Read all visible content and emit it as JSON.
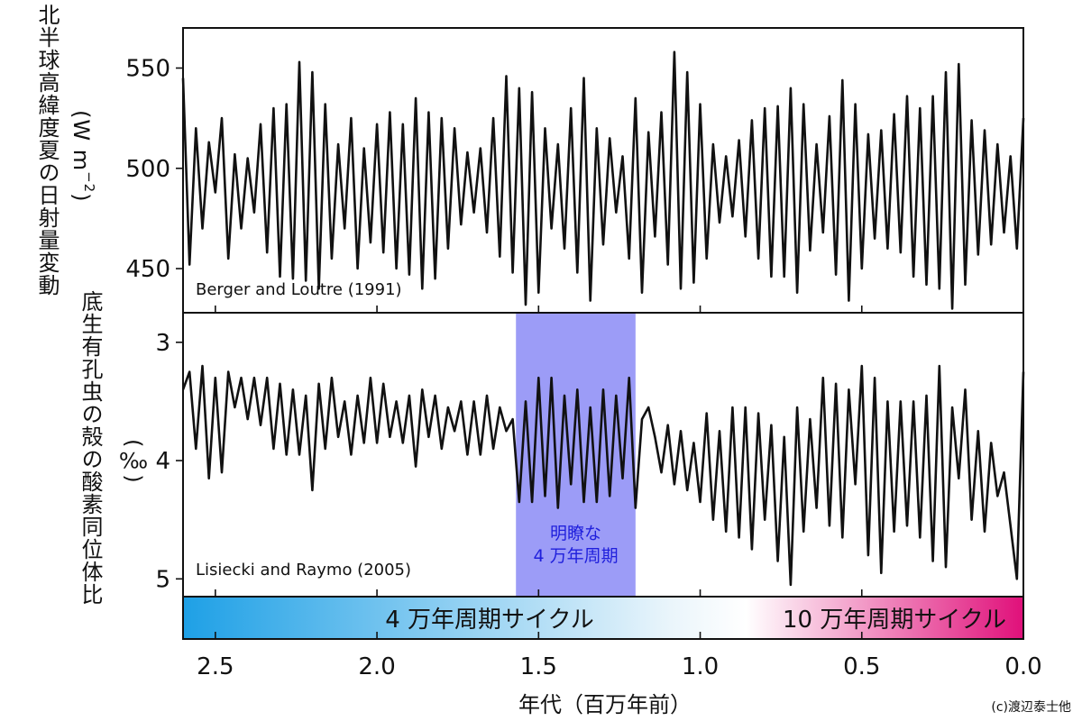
{
  "chart_data": [
    {
      "type": "line",
      "title": "",
      "ylabel": "北半球高緯度夏の日射量変動",
      "yunit": "(W m⁻²)",
      "annotation": "Berger and Loutre (1991)",
      "xlim": [
        2.6,
        0.0
      ],
      "ylim": [
        428,
        570
      ],
      "yticks": [
        450,
        500,
        550
      ],
      "series": [
        {
          "x": [
            2.6,
            2.58,
            2.56,
            2.54,
            2.52,
            2.5,
            2.48,
            2.46,
            2.44,
            2.42,
            2.4,
            2.38,
            2.36,
            2.34,
            2.32,
            2.3,
            2.28,
            2.26,
            2.24,
            2.22,
            2.2,
            2.18,
            2.16,
            2.14,
            2.12,
            2.1,
            2.08,
            2.06,
            2.04,
            2.02,
            2.0,
            1.98,
            1.96,
            1.94,
            1.92,
            1.9,
            1.88,
            1.86,
            1.84,
            1.82,
            1.8,
            1.78,
            1.76,
            1.74,
            1.72,
            1.7,
            1.68,
            1.66,
            1.64,
            1.62,
            1.6,
            1.58,
            1.56,
            1.54,
            1.52,
            1.5,
            1.48,
            1.46,
            1.44,
            1.42,
            1.4,
            1.38,
            1.36,
            1.34,
            1.32,
            1.3,
            1.28,
            1.26,
            1.24,
            1.22,
            1.2,
            1.18,
            1.16,
            1.14,
            1.12,
            1.1,
            1.08,
            1.06,
            1.04,
            1.02,
            1.0,
            0.98,
            0.96,
            0.94,
            0.92,
            0.9,
            0.88,
            0.86,
            0.84,
            0.82,
            0.8,
            0.78,
            0.76,
            0.74,
            0.72,
            0.7,
            0.68,
            0.66,
            0.64,
            0.62,
            0.6,
            0.58,
            0.56,
            0.54,
            0.52,
            0.5,
            0.48,
            0.46,
            0.44,
            0.42,
            0.4,
            0.38,
            0.36,
            0.34,
            0.32,
            0.3,
            0.28,
            0.26,
            0.24,
            0.22,
            0.2,
            0.18,
            0.16,
            0.14,
            0.12,
            0.1,
            0.08,
            0.06,
            0.04,
            0.02,
            0.0
          ],
          "y": [
            545,
            452,
            520,
            470,
            513,
            488,
            525,
            455,
            507,
            470,
            505,
            478,
            522,
            458,
            530,
            446,
            532,
            445,
            553,
            444,
            548,
            440,
            532,
            455,
            512,
            470,
            525,
            450,
            510,
            463,
            522,
            458,
            528,
            450,
            522,
            447,
            535,
            440,
            528,
            445,
            525,
            460,
            520,
            472,
            508,
            478,
            510,
            468,
            525,
            456,
            546,
            448,
            540,
            432,
            538,
            438,
            520,
            470,
            512,
            460,
            530,
            448,
            545,
            434,
            520,
            462,
            515,
            478,
            506,
            455,
            535,
            438,
            518,
            466,
            528,
            452,
            558,
            440,
            548,
            443,
            532,
            455,
            512,
            473,
            506,
            476,
            514,
            466,
            524,
            455,
            530,
            446,
            531,
            446,
            540,
            438,
            532,
            459,
            512,
            468,
            526,
            447,
            544,
            434,
            532,
            450,
            517,
            465,
            519,
            460,
            527,
            458,
            536,
            446,
            530,
            442,
            536,
            440,
            548,
            430,
            552,
            442,
            524,
            457,
            519,
            462,
            512,
            468,
            506,
            460,
            525
          ]
        }
      ]
    },
    {
      "type": "line",
      "title": "",
      "ylabel": "底生有孔虫の殻の酸素同位体比",
      "yunit": "(‰)",
      "annotation": "Lisiecki and Raymo (2005)",
      "y_inverted": true,
      "xlim": [
        2.6,
        0.0
      ],
      "ylim": [
        2.75,
        5.15
      ],
      "yticks": [
        3,
        4,
        5
      ],
      "highlight": {
        "x_from": 1.57,
        "x_to": 1.2,
        "color": "#9c9cf7",
        "label_line1": "明瞭な",
        "label_line2": "4 万年周期",
        "label_color": "#1f1fdc"
      },
      "series": [
        {
          "x": [
            2.6,
            2.58,
            2.56,
            2.54,
            2.52,
            2.5,
            2.48,
            2.46,
            2.44,
            2.42,
            2.4,
            2.38,
            2.36,
            2.34,
            2.32,
            2.3,
            2.28,
            2.26,
            2.24,
            2.22,
            2.2,
            2.18,
            2.16,
            2.14,
            2.12,
            2.1,
            2.08,
            2.06,
            2.04,
            2.02,
            2.0,
            1.98,
            1.96,
            1.94,
            1.92,
            1.9,
            1.88,
            1.86,
            1.84,
            1.82,
            1.8,
            1.78,
            1.76,
            1.74,
            1.72,
            1.7,
            1.68,
            1.66,
            1.64,
            1.62,
            1.6,
            1.58,
            1.56,
            1.54,
            1.52,
            1.5,
            1.48,
            1.46,
            1.44,
            1.42,
            1.4,
            1.38,
            1.36,
            1.34,
            1.32,
            1.3,
            1.28,
            1.26,
            1.24,
            1.22,
            1.2,
            1.18,
            1.16,
            1.14,
            1.12,
            1.1,
            1.08,
            1.06,
            1.04,
            1.02,
            1.0,
            0.98,
            0.96,
            0.94,
            0.92,
            0.9,
            0.88,
            0.86,
            0.84,
            0.82,
            0.8,
            0.78,
            0.76,
            0.74,
            0.72,
            0.7,
            0.68,
            0.66,
            0.64,
            0.62,
            0.6,
            0.58,
            0.56,
            0.54,
            0.52,
            0.5,
            0.48,
            0.46,
            0.44,
            0.42,
            0.4,
            0.38,
            0.36,
            0.34,
            0.32,
            0.3,
            0.28,
            0.26,
            0.24,
            0.22,
            0.2,
            0.18,
            0.16,
            0.14,
            0.12,
            0.1,
            0.08,
            0.06,
            0.04,
            0.02,
            0.0
          ],
          "y": [
            3.4,
            3.25,
            3.9,
            3.2,
            4.15,
            3.3,
            4.1,
            3.25,
            3.55,
            3.3,
            3.65,
            3.3,
            3.7,
            3.3,
            3.9,
            3.35,
            3.95,
            3.4,
            3.95,
            3.45,
            4.25,
            3.35,
            3.9,
            3.3,
            3.8,
            3.5,
            3.95,
            3.45,
            3.85,
            3.3,
            3.85,
            3.35,
            3.8,
            3.5,
            3.85,
            3.45,
            4.05,
            3.4,
            3.8,
            3.45,
            3.9,
            3.55,
            3.75,
            3.5,
            3.95,
            3.5,
            3.95,
            3.45,
            3.9,
            3.55,
            3.75,
            3.65,
            4.35,
            3.5,
            4.35,
            3.3,
            4.3,
            3.3,
            4.4,
            3.45,
            4.2,
            3.4,
            4.35,
            3.55,
            4.35,
            3.4,
            4.3,
            3.45,
            4.15,
            3.3,
            4.4,
            3.65,
            3.55,
            3.8,
            4.1,
            3.7,
            4.2,
            3.75,
            4.25,
            3.85,
            4.35,
            3.6,
            4.5,
            3.75,
            4.6,
            3.55,
            4.65,
            3.55,
            4.75,
            3.6,
            4.5,
            3.7,
            4.85,
            3.8,
            5.05,
            3.55,
            4.6,
            3.65,
            4.4,
            3.3,
            4.55,
            3.35,
            4.65,
            3.4,
            4.2,
            3.2,
            4.8,
            3.3,
            4.95,
            3.5,
            4.6,
            3.5,
            4.55,
            3.5,
            4.65,
            3.45,
            4.85,
            3.2,
            4.9,
            3.55,
            4.15,
            3.4,
            4.5,
            3.75,
            4.6,
            3.85,
            4.3,
            4.1,
            4.55,
            5.0,
            3.25
          ]
        }
      ]
    }
  ],
  "cycle_bar": {
    "left_label": "4 万年周期サイクル",
    "right_label": "10 万年周期サイクル",
    "left_color": "#1ea0e6",
    "right_color": "#e0107a"
  },
  "x_axis": {
    "label": "年代（百万年前）",
    "ticks": [
      2.5,
      2.0,
      1.5,
      1.0,
      0.5,
      0.0
    ],
    "tick_labels": [
      "2.5",
      "2.0",
      "1.5",
      "1.0",
      "0.5",
      "0.0"
    ]
  },
  "copyright": "(c)渡辺泰士他"
}
